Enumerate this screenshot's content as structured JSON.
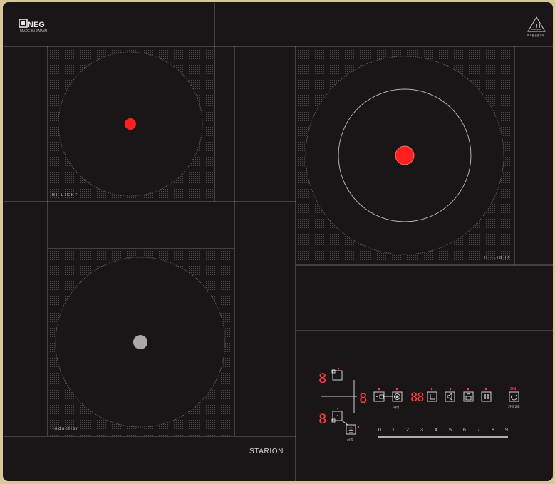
{
  "brand": {
    "logo_text": "NEG",
    "made_in": "MADE IN JAPAN",
    "model": "STARION"
  },
  "zones": [
    {
      "label": "HI-LIGHT",
      "state": "on",
      "indicator_color": "#ff2020"
    },
    {
      "label": "HI-LIGHT",
      "state": "on",
      "indicator_color": "#ff2020"
    },
    {
      "label": "Induction",
      "state": "off",
      "indicator_color": "#a9a9a9"
    }
  ],
  "warning": {
    "icon": "hot-surface-warning-icon",
    "text": "뜨거운 표면주의"
  },
  "control_panel": {
    "zone_digits": [
      "8",
      "8",
      "8"
    ],
    "timer_digits": "88",
    "buttons": [
      {
        "icon": "zone-select-icon",
        "label": ""
      },
      {
        "icon": "boost-icon",
        "label": "화력"
      },
      {
        "icon": "timer-icon",
        "label": ""
      },
      {
        "icon": "sound-icon",
        "label": ""
      },
      {
        "icon": "lock-icon",
        "label": ""
      },
      {
        "icon": "pause-icon",
        "label": ""
      },
      {
        "icon": "power-icon",
        "label": "켜짐 2초"
      },
      {
        "icon": "keep-warm-icon",
        "label": "금속"
      }
    ],
    "power_on_text": "ON",
    "power_levels": [
      "0",
      "1",
      "2",
      "3",
      "4",
      "5",
      "6",
      "7",
      "8",
      "9"
    ]
  },
  "colors": {
    "glass": "#1a1617",
    "frame": "#d8c79a",
    "display": "#ff3b3b",
    "zone_dot_on": "#ff2020",
    "zone_dot_off": "#a9a9a9"
  }
}
